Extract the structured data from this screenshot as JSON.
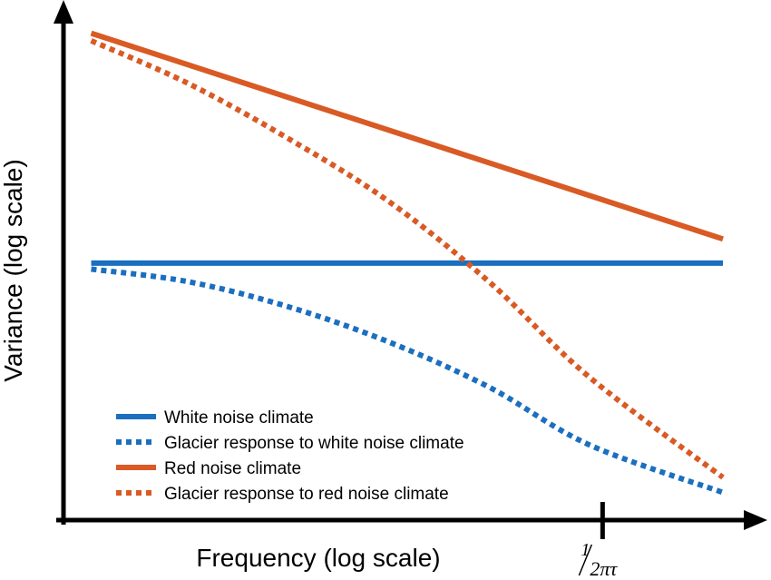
{
  "chart_data": {
    "type": "line",
    "xlabel": "Frequency (log scale)",
    "ylabel": "Variance (log scale)",
    "xlim": [
      0,
      10
    ],
    "ylim": [
      0,
      10
    ],
    "x_ticks": [
      {
        "x": 8.2,
        "numerator": "1",
        "denominator": "2πτ"
      }
    ],
    "grid": false,
    "legend_position": "bottom-left",
    "colors": {
      "blue": "#1b6fbf",
      "orange": "#d95a24",
      "axis": "#000000"
    },
    "series": [
      {
        "name": "White noise climate",
        "color": "#1b6fbf",
        "style": "solid",
        "points": [
          [
            0.55,
            5.12
          ],
          [
            10.0,
            5.12
          ]
        ]
      },
      {
        "name": "Glacier response to white noise climate",
        "color": "#1b6fbf",
        "style": "dotted",
        "points": [
          [
            0.55,
            5.0
          ],
          [
            2.0,
            4.75
          ],
          [
            3.5,
            4.25
          ],
          [
            5.0,
            3.55
          ],
          [
            6.5,
            2.65
          ],
          [
            8.0,
            1.5
          ],
          [
            10.0,
            0.55
          ]
        ]
      },
      {
        "name": "Red noise climate",
        "color": "#d95a24",
        "style": "solid",
        "points": [
          [
            0.55,
            9.7
          ],
          [
            10.0,
            5.6
          ]
        ]
      },
      {
        "name": "Glacier response to red noise climate",
        "color": "#d95a24",
        "style": "dotted",
        "points": [
          [
            0.55,
            9.55
          ],
          [
            2.0,
            8.7
          ],
          [
            3.5,
            7.6
          ],
          [
            5.0,
            6.35
          ],
          [
            6.5,
            4.75
          ],
          [
            8.0,
            2.85
          ],
          [
            10.0,
            0.85
          ]
        ]
      }
    ]
  }
}
